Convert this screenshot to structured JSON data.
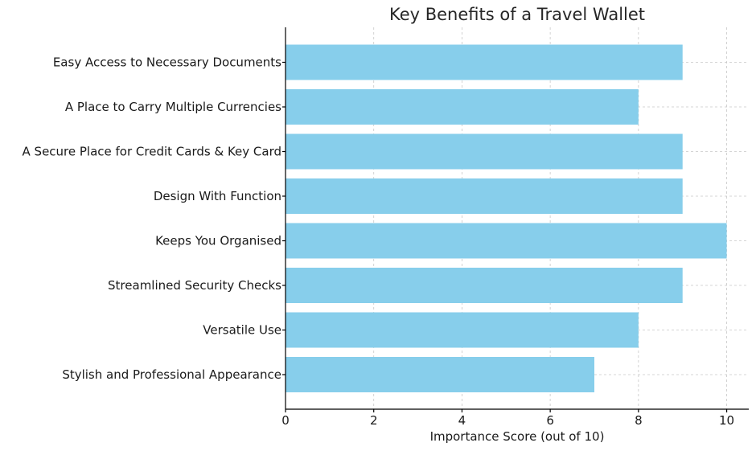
{
  "chart_data": {
    "type": "bar",
    "orientation": "horizontal",
    "title": "Key Benefits of a Travel Wallet",
    "xlabel": "Importance Score (out of 10)",
    "ylabel": "",
    "xlim": [
      0,
      10.5
    ],
    "xticks": [
      0,
      2,
      4,
      6,
      8,
      10
    ],
    "grid": true,
    "bar_color": "#87CEEB",
    "categories": [
      "Easy Access to Necessary Documents",
      "A Place to Carry Multiple Currencies",
      "A Secure Place for Credit Cards & Key Card",
      "Design With Function",
      "Keeps You Organised",
      "Streamlined Security Checks",
      "Versatile Use",
      "Stylish and Professional Appearance"
    ],
    "values": [
      9,
      8,
      9,
      9,
      10,
      9,
      8,
      7
    ]
  }
}
